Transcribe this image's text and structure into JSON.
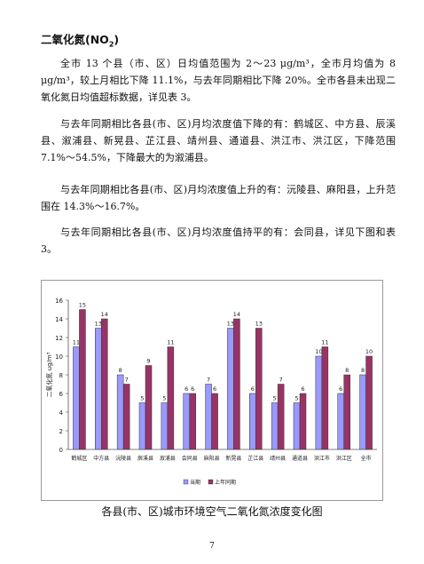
{
  "heading": {
    "main": "二氧化氮(NO",
    "sub": "2",
    "close": ")"
  },
  "paragraphs": {
    "p1": "全市 13 个县（市、区）日均值范围为 2～23 μg/m³，全市月均值为 8 μg/m³，较上月相比下降 11.1%，与去年同期相比下降 20%。全市各县未出现二氧化氮日均值超标数据，详见表 3。",
    "p2": "与去年同期相比各县(市、区)月均浓度值下降的有：鹤城区、中方县、辰溪县、溆浦县、新晃县、芷江县、靖州县、通道县、洪江市、洪江区，下降范围 7.1%～54.5%，下降最大的为溆浦县。",
    "p3": "与去年同期相比各县(市、区)月均浓度值上升的有：沅陵县、麻阳县，上升范围在 14.3%～16.7%。",
    "p4": "与去年同期相比各县(市、区)月均浓度值持平的有：会同县，详见下图和表 3。"
  },
  "caption": "各县(市、区)城市环境空气二氧化氮浓度变化图",
  "page_number": "7",
  "colors": {
    "current": "#9999ff",
    "last_year": "#993366"
  },
  "chart_data": {
    "type": "bar",
    "title": "",
    "xlabel": "",
    "ylabel": "二氧化氮 ug/m³",
    "ylim": [
      0,
      16
    ],
    "yticks": [
      "0",
      "2",
      "4",
      "6",
      "8",
      "10",
      "12",
      "14",
      "16"
    ],
    "legend_placement": "bottom",
    "categories": [
      "鹤城区",
      "中方县",
      "沅陵县",
      "辰溪县",
      "溆浦县",
      "会同县",
      "麻阳县",
      "新晃县",
      "芷江县",
      "靖州县",
      "通道县",
      "洪江市",
      "洪江区",
      "全市"
    ],
    "series": [
      {
        "name": "当期",
        "values": [
          11,
          13,
          8,
          5,
          5,
          6,
          7,
          13,
          6,
          5,
          5,
          10,
          6,
          8
        ]
      },
      {
        "name": "上年同期",
        "values": [
          15,
          14,
          7,
          9,
          11,
          6,
          6,
          14,
          13,
          7,
          6,
          11,
          8,
          10
        ]
      }
    ]
  }
}
